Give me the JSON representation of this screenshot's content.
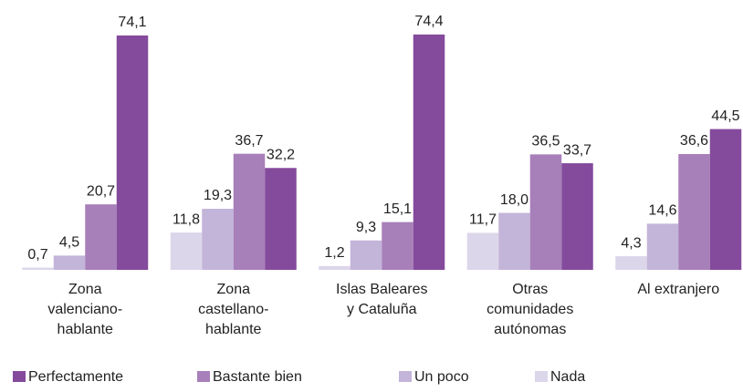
{
  "chart_data": {
    "type": "bar",
    "categories": [
      [
        "Zona",
        "valenciano-",
        "hablante"
      ],
      [
        "Zona",
        "castellano-",
        "hablante"
      ],
      [
        "Islas Baleares",
        "y Cataluña"
      ],
      [
        "Otras",
        "comunidades",
        "autónomas"
      ],
      [
        "Al extranjero"
      ]
    ],
    "series": [
      {
        "name": "Nada",
        "color": "#dcd6ea",
        "values": [
          0.7,
          11.8,
          1.2,
          11.7,
          4.3
        ],
        "value_labels": [
          "0,7",
          "11,8",
          "1,2",
          "11,7",
          "4,3"
        ]
      },
      {
        "name": "Un poco",
        "color": "#c3b4d9",
        "values": [
          4.5,
          19.3,
          9.3,
          18.0,
          14.6
        ],
        "value_labels": [
          "4,5",
          "19,3",
          "9,3",
          "18,0",
          "14,6"
        ]
      },
      {
        "name": "Bastante bien",
        "color": "#a77fb9",
        "values": [
          20.7,
          36.7,
          15.1,
          36.5,
          36.6
        ],
        "value_labels": [
          "20,7",
          "36,7",
          "15,1",
          "36,5",
          "36,6"
        ]
      },
      {
        "name": "Perfectamente",
        "color": "#844a9c",
        "values": [
          74.1,
          32.2,
          74.4,
          33.7,
          44.5
        ],
        "value_labels": [
          "74,1",
          "32,2",
          "74,4",
          "33,7",
          "44,5"
        ]
      }
    ],
    "ylim": [
      0,
      80
    ]
  }
}
